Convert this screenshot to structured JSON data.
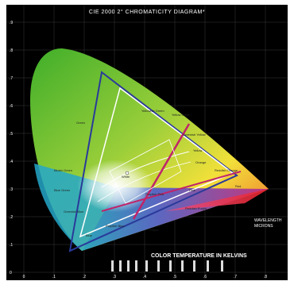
{
  "title": "CIE 2000 2° CHROMATICITY DIAGRAM*",
  "x_axis_ticks": [
    "0",
    ".1",
    ".2",
    ".3",
    ".4",
    ".5",
    ".6",
    ".7",
    ".8"
  ],
  "y_axis_ticks": [
    ".9",
    ".8",
    ".7",
    ".6",
    ".5",
    ".4",
    ".3",
    ".2",
    ".1",
    "0"
  ],
  "bottom_label": "COLOR TEMPERATURE IN KELVINS",
  "wavelength_label": "WAVELENGTH",
  "wavelength_unit": "MICRONS",
  "region_labels": {
    "green": "Green",
    "yellowish_green": "Yellowish Green",
    "yellow_green": "Yellow Green",
    "greenish_yellow": "Greenish Yellow",
    "yellow": "Yellow",
    "orange": "Orange",
    "reddish_orange": "Reddish Orange",
    "red": "Red",
    "white": "White",
    "purplish_pink": "Purplish Pink",
    "pink": "Pink",
    "purple": "Purple",
    "blue": "Blue",
    "bluish_green": "Bluish Green",
    "blue_green": "Blue Green",
    "greenish_blue": "Greenish Blue",
    "purplish_blue": "Purplish Blue",
    "reddish_purple": "Reddish Purple"
  },
  "colors": {
    "background": "#000000",
    "gamut_blue": "#2a3a9a",
    "gamut_white": "#ffffff",
    "locus_magenta": "#c0246a"
  }
}
